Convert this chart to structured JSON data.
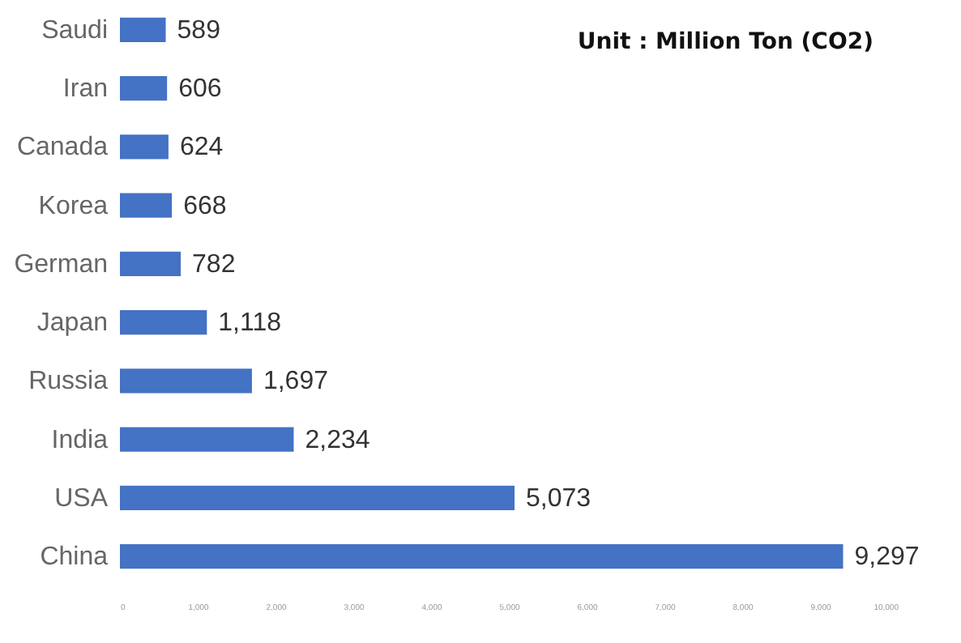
{
  "chart_data": {
    "type": "bar",
    "orientation": "horizontal",
    "categories": [
      "Saudi",
      "Iran",
      "Canada",
      "Korea",
      "German",
      "Japan",
      "Russia",
      "India",
      "USA",
      "China"
    ],
    "values": [
      589,
      606,
      624,
      668,
      782,
      1118,
      1697,
      2234,
      5073,
      9297
    ],
    "color": "#4472c4",
    "annotations": [
      "Unit : Million Ton (CO2)"
    ],
    "value_labels": [
      "589",
      "606",
      "624",
      "668",
      "782",
      "1,118",
      "1,697",
      "2,234",
      "5,073",
      "9,297"
    ],
    "xlim": [
      0,
      10000
    ],
    "xticks": [
      0,
      {
        "value": 1000,
        "label": "1,000"
      },
      {
        "value": 2000,
        "label": "2,000"
      },
      {
        "value": 3000,
        "label": "3,000"
      },
      {
        "value": 4000,
        "label": "4,000"
      },
      {
        "value": 5000,
        "label": "5,000"
      },
      {
        "value": 6000,
        "label": "6,000"
      },
      {
        "value": 7000,
        "label": "7,000"
      },
      {
        "value": 8000,
        "label": "8,000"
      },
      {
        "value": 9000,
        "label": "9,000"
      },
      {
        "value": 10000,
        "label": "10,000"
      }
    ],
    "grid": false
  }
}
